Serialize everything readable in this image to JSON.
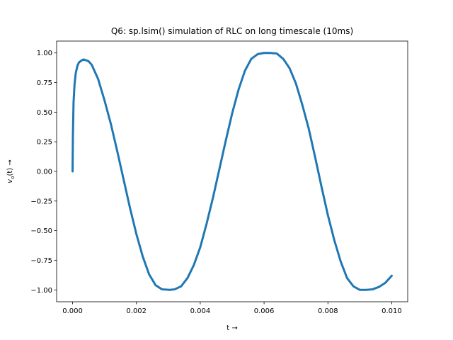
{
  "chart_data": {
    "type": "line",
    "title": "Q6: sp.lsim() simulation of RLC on long timescale (10ms)",
    "xlabel": "t →",
    "ylabel_var": "v",
    "ylabel_sub": "o",
    "ylabel_rest": "(t)  →",
    "xlim": [
      -0.0005,
      0.0105
    ],
    "ylim": [
      -1.1,
      1.1
    ],
    "xticks": [
      0.0,
      0.002,
      0.004,
      0.006,
      0.008,
      0.01
    ],
    "xtick_labels": [
      "0.000",
      "0.002",
      "0.004",
      "0.006",
      "0.008",
      "0.010"
    ],
    "yticks": [
      1.0,
      0.75,
      0.5,
      0.25,
      0.0,
      -0.25,
      -0.5,
      -0.75,
      -1.0
    ],
    "ytick_labels": [
      "1.00",
      "0.75",
      "0.50",
      "0.25",
      "0.00",
      "−0.25",
      "−0.50",
      "−0.75",
      "−1.00"
    ],
    "grid": false,
    "line_color": "#1f77b4",
    "series": [
      {
        "points": [
          [
            0.0,
            0.0
          ],
          [
            1e-05,
            0.3
          ],
          [
            3e-05,
            0.58
          ],
          [
            6e-05,
            0.73
          ],
          [
            0.0001,
            0.83
          ],
          [
            0.00015,
            0.89
          ],
          [
            0.0002,
            0.92
          ],
          [
            0.0003,
            0.94
          ],
          [
            0.00035,
            0.945
          ],
          [
            0.0004,
            0.94
          ],
          [
            0.0005,
            0.93
          ],
          [
            0.0006,
            0.9
          ],
          [
            0.0008,
            0.78
          ],
          [
            0.001,
            0.6
          ],
          [
            0.0012,
            0.4
          ],
          [
            0.0014,
            0.17
          ],
          [
            0.0016,
            -0.07
          ],
          [
            0.0018,
            -0.31
          ],
          [
            0.002,
            -0.53
          ],
          [
            0.0022,
            -0.72
          ],
          [
            0.0024,
            -0.87
          ],
          [
            0.0026,
            -0.96
          ],
          [
            0.0028,
            -0.995
          ],
          [
            0.00305,
            -1.0
          ],
          [
            0.0032,
            -0.995
          ],
          [
            0.0034,
            -0.97
          ],
          [
            0.0036,
            -0.9
          ],
          [
            0.0038,
            -0.79
          ],
          [
            0.004,
            -0.64
          ],
          [
            0.0042,
            -0.44
          ],
          [
            0.0044,
            -0.22
          ],
          [
            0.0046,
            0.02
          ],
          [
            0.0048,
            0.26
          ],
          [
            0.005,
            0.49
          ],
          [
            0.0052,
            0.69
          ],
          [
            0.0054,
            0.85
          ],
          [
            0.0056,
            0.95
          ],
          [
            0.0058,
            0.99
          ],
          [
            0.006,
            1.0
          ],
          [
            0.0062,
            1.0
          ],
          [
            0.0064,
            0.995
          ],
          [
            0.0066,
            0.95
          ],
          [
            0.0068,
            0.87
          ],
          [
            0.007,
            0.74
          ],
          [
            0.0072,
            0.56
          ],
          [
            0.0074,
            0.36
          ],
          [
            0.0076,
            0.12
          ],
          [
            0.0078,
            -0.13
          ],
          [
            0.008,
            -0.37
          ],
          [
            0.0082,
            -0.58
          ],
          [
            0.0084,
            -0.76
          ],
          [
            0.0086,
            -0.9
          ],
          [
            0.0088,
            -0.97
          ],
          [
            0.009,
            -1.0
          ],
          [
            0.0092,
            -1.0
          ],
          [
            0.0094,
            -0.995
          ],
          [
            0.0096,
            -0.975
          ],
          [
            0.0098,
            -0.94
          ],
          [
            0.01,
            -0.88
          ]
        ]
      }
    ]
  }
}
